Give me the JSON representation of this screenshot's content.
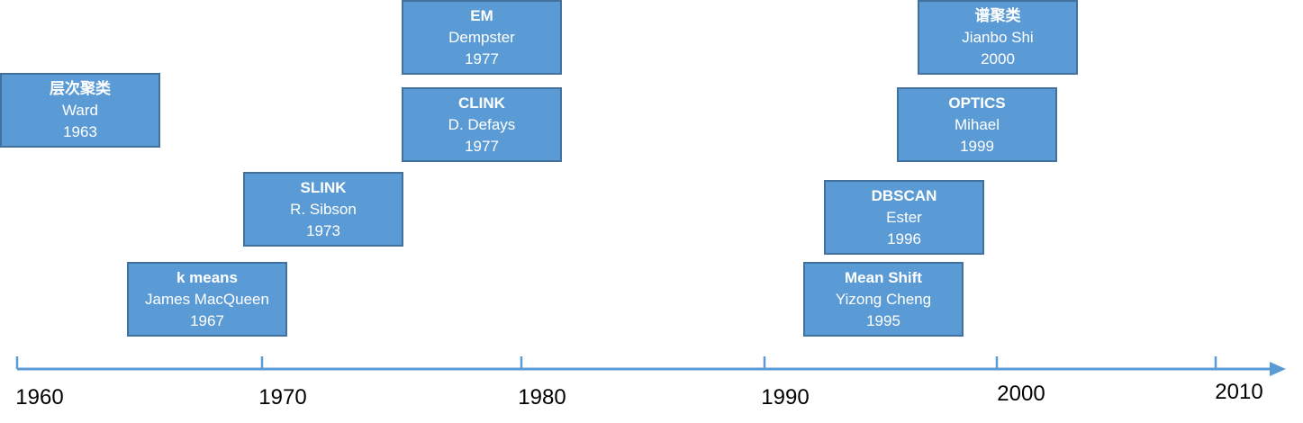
{
  "timeline": {
    "axis_color": "#5b9bd5",
    "box_fill": "#5b9bd5",
    "box_border": "#41719c",
    "text_color": "#ffffff",
    "ticks": [
      "1960",
      "1970",
      "1980",
      "1990",
      "2000",
      "2010"
    ],
    "events": [
      {
        "title": "层次聚类",
        "author": "Ward",
        "year": "1963"
      },
      {
        "title": "k means",
        "author": "James MacQueen",
        "year": "1967"
      },
      {
        "title": "SLINK",
        "author": "R. Sibson",
        "year": "1973"
      },
      {
        "title": "CLINK",
        "author": "D. Defays",
        "year": "1977"
      },
      {
        "title": "EM",
        "author": "Dempster",
        "year": "1977"
      },
      {
        "title": "Mean Shift",
        "author": "Yizong Cheng",
        "year": "1995"
      },
      {
        "title": "DBSCAN",
        "author": "Ester",
        "year": "1996"
      },
      {
        "title": "OPTICS",
        "author": "Mihael",
        "year": "1999"
      },
      {
        "title": "谱聚类",
        "author": "Jianbo Shi",
        "year": "2000"
      }
    ]
  }
}
